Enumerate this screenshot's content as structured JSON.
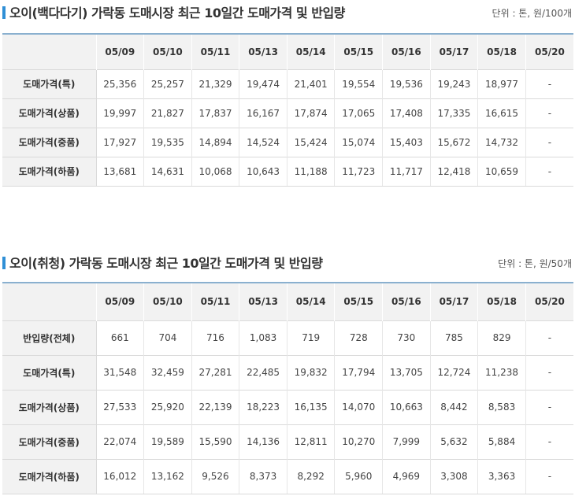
{
  "tables": [
    {
      "title": "오이(백다다기) 가락동 도매시장 최근 10일간 도매가격 및 반입량",
      "unit": "단위 : 톤, 원/100개",
      "accent_color": "#2f8fd6",
      "columns": [
        "05/09",
        "05/10",
        "05/11",
        "05/13",
        "05/14",
        "05/15",
        "05/16",
        "05/17",
        "05/18",
        "05/20"
      ],
      "rows": [
        {
          "label": "도매가격(특)",
          "values": [
            "25,356",
            "25,257",
            "21,329",
            "19,474",
            "21,401",
            "19,554",
            "19,536",
            "19,243",
            "18,977",
            "-"
          ]
        },
        {
          "label": "도매가격(상품)",
          "values": [
            "19,997",
            "21,827",
            "17,837",
            "16,167",
            "17,874",
            "17,065",
            "17,408",
            "17,335",
            "16,615",
            "-"
          ]
        },
        {
          "label": "도매가격(중품)",
          "values": [
            "17,927",
            "19,535",
            "14,894",
            "14,524",
            "15,424",
            "15,074",
            "15,403",
            "15,672",
            "14,732",
            "-"
          ]
        },
        {
          "label": "도매가격(하품)",
          "values": [
            "13,681",
            "14,631",
            "10,068",
            "10,643",
            "11,188",
            "11,723",
            "11,717",
            "12,418",
            "10,659",
            "-"
          ]
        }
      ]
    },
    {
      "title": "오이(취청) 가락동 도매시장 최근 10일간 도매가격 및 반입량",
      "unit": "단위 : 톤, 원/50개",
      "accent_color": "#2f8fd6",
      "columns": [
        "05/09",
        "05/10",
        "05/11",
        "05/13",
        "05/14",
        "05/15",
        "05/16",
        "05/17",
        "05/18",
        "05/20"
      ],
      "rows": [
        {
          "label": "반입량(전체)",
          "values": [
            "661",
            "704",
            "716",
            "1,083",
            "719",
            "728",
            "730",
            "785",
            "829",
            "-"
          ]
        },
        {
          "label": "도매가격(특)",
          "values": [
            "31,548",
            "32,459",
            "27,281",
            "22,485",
            "19,832",
            "17,794",
            "13,705",
            "12,724",
            "11,238",
            "-"
          ]
        },
        {
          "label": "도매가격(상품)",
          "values": [
            "27,533",
            "25,920",
            "22,139",
            "18,223",
            "16,135",
            "14,070",
            "10,663",
            "8,442",
            "8,583",
            "-"
          ]
        },
        {
          "label": "도매가격(중품)",
          "values": [
            "22,074",
            "19,589",
            "15,590",
            "14,136",
            "12,811",
            "10,270",
            "7,999",
            "5,632",
            "5,884",
            "-"
          ]
        },
        {
          "label": "도매가격(하품)",
          "values": [
            "16,012",
            "13,162",
            "9,526",
            "8,373",
            "8,292",
            "5,960",
            "4,969",
            "3,308",
            "3,363",
            "-"
          ]
        }
      ]
    }
  ]
}
